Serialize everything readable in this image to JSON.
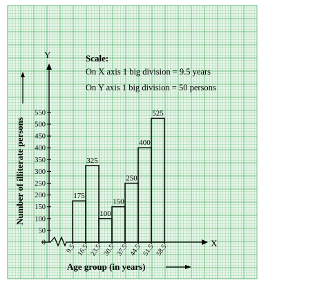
{
  "chart_data": {
    "type": "bar",
    "categories": [
      "9.5-16.5",
      "16.5-23.5",
      "23.5-30.5",
      "30.5-37.5",
      "37.5-44.5",
      "44.5-51.5",
      "51.5-58.5"
    ],
    "x_edges": [
      "9.5",
      "16.5",
      "23.5",
      "30.5",
      "37.5",
      "44.5",
      "51.5",
      "58.5"
    ],
    "values": [
      175,
      325,
      100,
      150,
      250,
      400,
      525
    ],
    "data_labels": [
      "175",
      "325",
      "100",
      "150",
      "250",
      "400",
      "525"
    ],
    "y_ticks": [
      "0",
      "50",
      "100",
      "150",
      "200",
      "250",
      "300",
      "350",
      "400",
      "450",
      "500",
      "550"
    ],
    "ylim": [
      0,
      550
    ],
    "xlabel": "Age group (in years)",
    "ylabel": "Number of illiterate persons",
    "x_axis_name": "X",
    "y_axis_name": "Y",
    "grid": true,
    "scale_text": {
      "title": "Scale:",
      "line1": "On X axis 1 big division = 9.5 years",
      "line2": "On Y axis 1 big division = 50 persons"
    },
    "colors": {
      "grid_minor": "#8fcf9f",
      "grid_major": "#4fae66",
      "bars": "#000000",
      "background": "#e9f6ea"
    }
  }
}
